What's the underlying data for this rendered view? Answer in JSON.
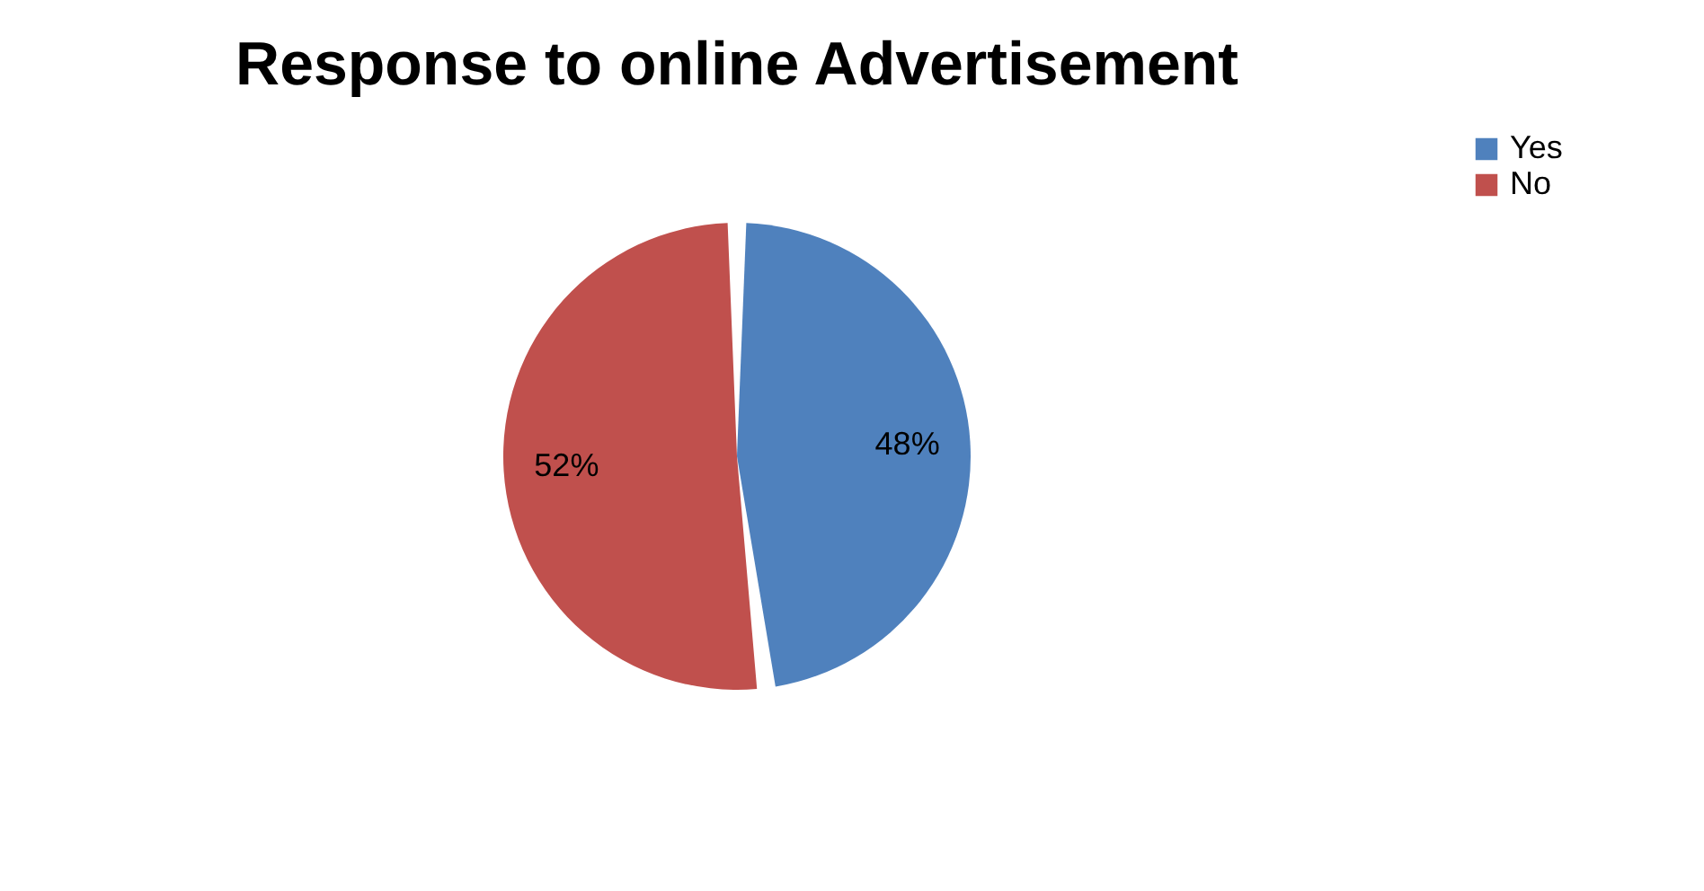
{
  "chart_data": {
    "type": "pie",
    "title": "Response to online Advertisement",
    "categories": [
      "Yes",
      "No"
    ],
    "values": [
      48,
      52
    ],
    "colors": [
      "#4f81bd",
      "#c0504d"
    ],
    "value_labels": [
      "48%",
      "52%"
    ],
    "legend": "right"
  }
}
